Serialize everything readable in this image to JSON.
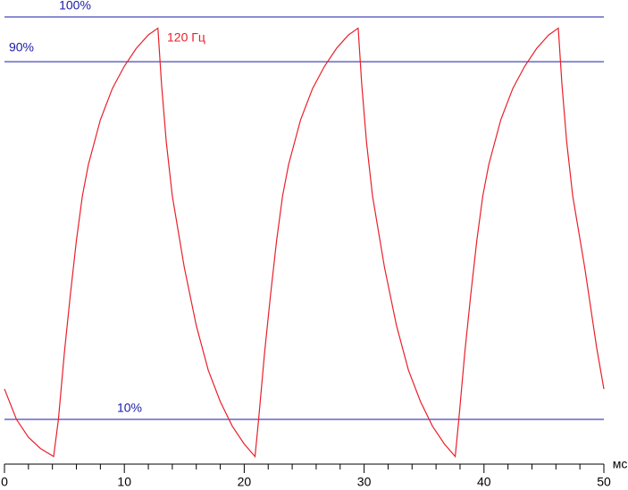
{
  "chart_data": {
    "type": "line",
    "x_label": "мс",
    "x": [
      0,
      1,
      2,
      3,
      4.1,
      4.5,
      5,
      5.5,
      6,
      6.5,
      7,
      8,
      9,
      10,
      11,
      12,
      12.8,
      13.1,
      13.5,
      14,
      15,
      16,
      17,
      18,
      19,
      20,
      20.9,
      21.2,
      21.7,
      22.2,
      22.7,
      23.2,
      23.7,
      24.7,
      25.7,
      26.7,
      27.7,
      28.7,
      29.5,
      29.8,
      30.2,
      30.7,
      31.7,
      32.7,
      33.7,
      34.7,
      35.7,
      36.7,
      37.6,
      37.9,
      38.4,
      38.9,
      39.4,
      39.9,
      40.4,
      41.4,
      42.4,
      43.4,
      44.4,
      45.4,
      46.2,
      46.5,
      46.9,
      47.4,
      48.4,
      49.4,
      50
    ],
    "series": [
      {
        "name": "120 Гц",
        "color": "#e8202a",
        "values": [
          16.8,
          10,
          6,
          3.5,
          1.7,
          10,
          25,
          38,
          50,
          60,
          67,
          77,
          84,
          89,
          93,
          96,
          97.5,
          85,
          72,
          60,
          44,
          31,
          21,
          14,
          8.5,
          4.5,
          1.7,
          10,
          25,
          38,
          50,
          60,
          67,
          77,
          84,
          89,
          93,
          96,
          97.5,
          85,
          72,
          60,
          44,
          31,
          21,
          14,
          8.5,
          4.5,
          1.7,
          10,
          25,
          38,
          50,
          60,
          67,
          77,
          84,
          89,
          93,
          96,
          97.5,
          85,
          72,
          60,
          44,
          26,
          16.8
        ]
      }
    ],
    "reference_lines": [
      {
        "value": 100,
        "label": "100%"
      },
      {
        "value": 90,
        "label": "90%"
      },
      {
        "value": 10,
        "label": "10%"
      }
    ],
    "reference_color": "#1a1aa8",
    "xlim": [
      0,
      50
    ],
    "ylim": [
      0,
      103.8
    ],
    "xticks": [
      0,
      10,
      20,
      30,
      40,
      50
    ],
    "xminorticks": [
      2,
      4,
      6,
      8,
      12,
      14,
      16,
      18,
      22,
      24,
      26,
      28,
      32,
      34,
      36,
      38,
      42,
      44,
      46,
      48
    ]
  }
}
